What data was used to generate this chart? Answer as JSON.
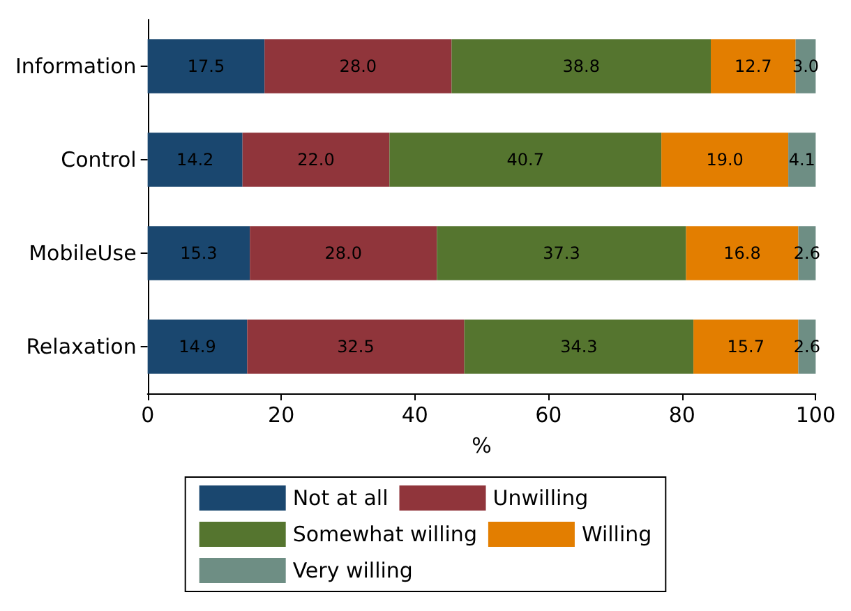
{
  "chart_data": {
    "type": "bar",
    "orientation": "horizontal",
    "stacked": true,
    "xlabel": "%",
    "categories": [
      "Information",
      "Control",
      "MobileUse",
      "Relaxation"
    ],
    "series": [
      {
        "name": "Not at all",
        "color": "#1a476f",
        "values": [
          17.5,
          14.2,
          15.3,
          14.9
        ],
        "value_labels": [
          "17.5",
          "14.2",
          "15.3",
          "14.9"
        ]
      },
      {
        "name": "Unwilling",
        "color": "#90353b",
        "values": [
          28.0,
          22.0,
          28.0,
          32.5
        ],
        "value_labels": [
          "28.0",
          "22.0",
          "28.0",
          "32.5"
        ]
      },
      {
        "name": "Somewhat willing",
        "color": "#55752f",
        "values": [
          38.8,
          40.7,
          37.3,
          34.3
        ],
        "value_labels": [
          "38.8",
          "40.7",
          "37.3",
          "34.3"
        ]
      },
      {
        "name": "Willing",
        "color": "#e37e00",
        "values": [
          12.7,
          19.0,
          16.8,
          15.7
        ],
        "value_labels": [
          "12.7",
          "19.0",
          "16.8",
          "15.7"
        ]
      },
      {
        "name": "Very willing",
        "color": "#6e8e84",
        "values": [
          3.0,
          4.1,
          2.6,
          2.6
        ],
        "value_labels": [
          "3.0",
          "4.1",
          "2.6",
          "2.6"
        ]
      }
    ],
    "xlim": [
      0,
      100
    ],
    "xticks": [
      0,
      20,
      40,
      60,
      80,
      100
    ],
    "grid": false,
    "legend": "bottom"
  }
}
